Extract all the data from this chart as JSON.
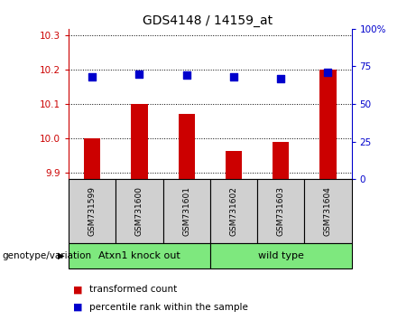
{
  "title": "GDS4148 / 14159_at",
  "samples": [
    "GSM731599",
    "GSM731600",
    "GSM731601",
    "GSM731602",
    "GSM731603",
    "GSM731604"
  ],
  "red_values": [
    10.0,
    10.1,
    10.07,
    9.963,
    9.99,
    10.2
  ],
  "blue_values": [
    68,
    70,
    69,
    68,
    67,
    71
  ],
  "ylim_left": [
    9.88,
    10.32
  ],
  "ylim_right": [
    0,
    100
  ],
  "yticks_left": [
    9.9,
    10.0,
    10.1,
    10.2,
    10.3
  ],
  "yticks_right": [
    0,
    25,
    50,
    75,
    100
  ],
  "ytick_labels_right": [
    "0",
    "25",
    "50",
    "75",
    "100%"
  ],
  "groups": [
    {
      "label": "Atxn1 knock out",
      "start": 0,
      "end": 3
    },
    {
      "label": "wild type",
      "start": 3,
      "end": 6
    }
  ],
  "bar_color": "#CC0000",
  "dot_color": "#0000CC",
  "left_axis_color": "#CC0000",
  "right_axis_color": "#0000CC",
  "bar_width": 0.35,
  "dot_size": 30,
  "genotype_label": "genotype/variation",
  "legend_red": "transformed count",
  "legend_blue": "percentile rank within the sample",
  "tick_box_color": "#d0d0d0",
  "group_box_color": "#7EE87E",
  "title_fontsize": 10,
  "tick_fontsize": 7.5,
  "label_fontsize": 7.5,
  "sample_fontsize": 6.5
}
